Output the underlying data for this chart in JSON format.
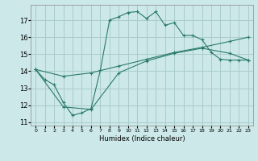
{
  "xlabel": "Humidex (Indice chaleur)",
  "bg_color": "#cce8e8",
  "grid_color": "#aacccc",
  "line_color": "#2a7a6a",
  "xlim": [
    -0.5,
    23.5
  ],
  "ylim": [
    10.8,
    17.9
  ],
  "yticks": [
    11,
    12,
    13,
    14,
    15,
    16,
    17
  ],
  "xticks": [
    0,
    1,
    2,
    3,
    4,
    5,
    6,
    7,
    8,
    9,
    10,
    11,
    12,
    13,
    14,
    15,
    16,
    17,
    18,
    19,
    20,
    21,
    22,
    23
  ],
  "line1_x": [
    0,
    1,
    2,
    3,
    4,
    5,
    6,
    7,
    8,
    9,
    10,
    11,
    12,
    13,
    14,
    15,
    16,
    17,
    18,
    19,
    20,
    21,
    22,
    23
  ],
  "line1_y": [
    14.1,
    13.5,
    13.2,
    12.15,
    11.4,
    11.55,
    11.8,
    14.05,
    17.0,
    17.2,
    17.45,
    17.5,
    17.1,
    17.5,
    16.7,
    16.85,
    16.1,
    16.1,
    15.85,
    15.1,
    14.7,
    14.65,
    14.65,
    14.65
  ],
  "line2_x": [
    0,
    3,
    6,
    9,
    12,
    15,
    18,
    21,
    23
  ],
  "line2_y": [
    14.1,
    13.7,
    13.9,
    14.3,
    14.7,
    15.1,
    15.4,
    15.75,
    16.0
  ],
  "line3_x": [
    0,
    3,
    6,
    9,
    12,
    15,
    18,
    21,
    23
  ],
  "line3_y": [
    14.1,
    11.9,
    11.75,
    13.9,
    14.6,
    15.05,
    15.35,
    15.05,
    14.65
  ]
}
